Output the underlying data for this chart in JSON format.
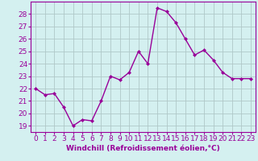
{
  "x": [
    0,
    1,
    2,
    3,
    4,
    5,
    6,
    7,
    8,
    9,
    10,
    11,
    12,
    13,
    14,
    15,
    16,
    17,
    18,
    19,
    20,
    21,
    22,
    23
  ],
  "y": [
    22.0,
    21.5,
    21.6,
    20.5,
    19.0,
    19.5,
    19.4,
    21.0,
    23.0,
    22.7,
    23.3,
    25.0,
    24.0,
    28.5,
    28.2,
    27.3,
    26.0,
    24.7,
    25.1,
    24.3,
    23.3,
    22.8,
    22.8,
    22.8
  ],
  "line_color": "#990099",
  "marker": "D",
  "marker_size": 2,
  "bg_color": "#d4f0f0",
  "grid_color": "#b0c8c8",
  "xlabel": "Windchill (Refroidissement éolien,°C)",
  "xlim": [
    -0.5,
    23.5
  ],
  "ylim": [
    18.5,
    29.0
  ],
  "yticks": [
    19,
    20,
    21,
    22,
    23,
    24,
    25,
    26,
    27,
    28
  ],
  "xticks": [
    0,
    1,
    2,
    3,
    4,
    5,
    6,
    7,
    8,
    9,
    10,
    11,
    12,
    13,
    14,
    15,
    16,
    17,
    18,
    19,
    20,
    21,
    22,
    23
  ],
  "xlabel_fontsize": 6.5,
  "tick_fontsize": 6.5,
  "line_width": 1.0,
  "title_color": "#990099"
}
